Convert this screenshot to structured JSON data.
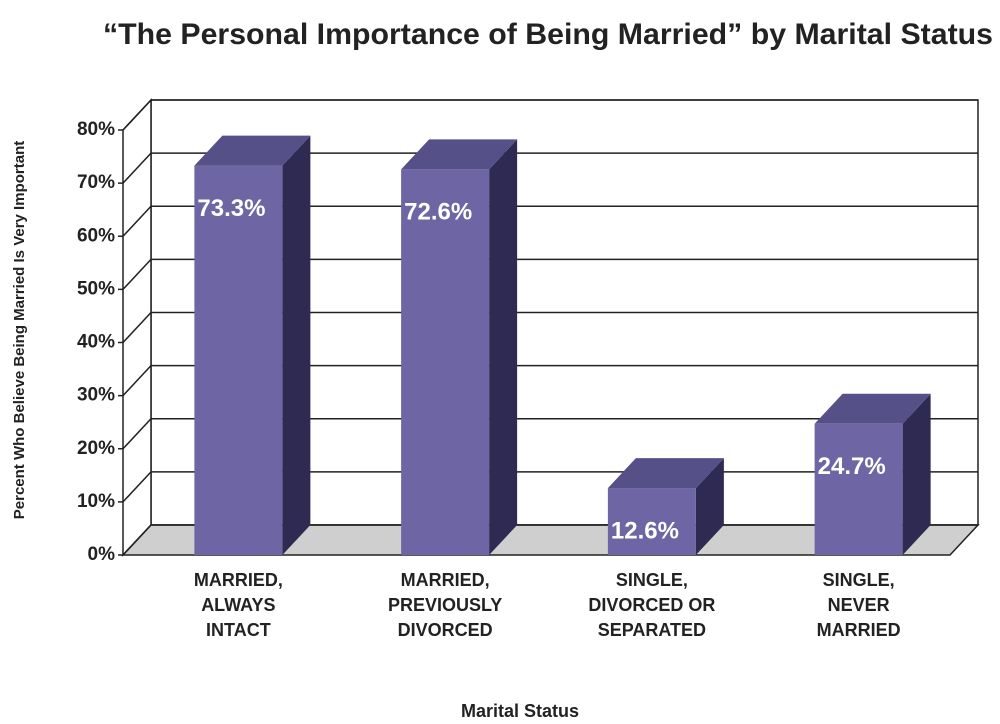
{
  "chart_data": {
    "type": "bar3d",
    "title": "“The Personal Importance of Being Married” by Marital Status",
    "ylabel": "Percent Who Believe Being Married Is Very Important",
    "xlabel": "Marital Status",
    "categories": [
      "MARRIED,\nALWAYS\nINTACT",
      "MARRIED,\nPREVIOUSLY\nDIVORCED",
      "SINGLE,\nDIVORCED OR\nSEPARATED",
      "SINGLE,\nNEVER\nMARRIED"
    ],
    "values": [
      73.3,
      72.6,
      12.6,
      24.7
    ],
    "value_labels": [
      "73.3%",
      "72.6%",
      "12.6%",
      "24.7%"
    ],
    "color": "#6e66a4",
    "ylim": [
      0,
      80
    ],
    "yticks": [
      {
        "value": 0,
        "label": "0%"
      },
      {
        "value": 10,
        "label": "10%"
      },
      {
        "value": 20,
        "label": "20%"
      },
      {
        "value": 30,
        "label": "30%"
      },
      {
        "value": 40,
        "label": "40%"
      },
      {
        "value": 50,
        "label": "50%"
      },
      {
        "value": 60,
        "label": "60%"
      },
      {
        "value": 70,
        "label": "70%"
      },
      {
        "value": 80,
        "label": "80%"
      }
    ],
    "grid": true
  }
}
